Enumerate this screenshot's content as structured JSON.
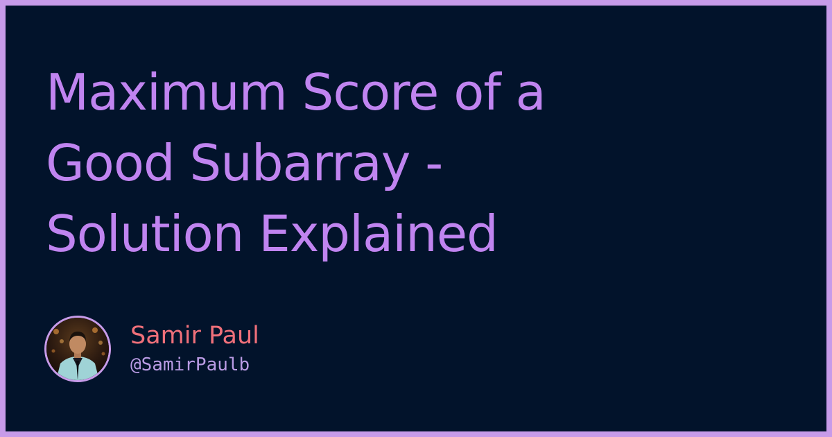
{
  "title": {
    "lines": [
      "Maximum Score of a",
      "Good Subarray -",
      "Solution Explained"
    ]
  },
  "author": {
    "name": "Samir Paul",
    "handle": "@SamirPaulb",
    "avatar_icon": "person-photo-avatar"
  },
  "colors": {
    "border": "#c79be9",
    "background": "#02132b",
    "title": "#c084f0",
    "author_name": "#f0707a",
    "author_handle": "#b99be4"
  }
}
